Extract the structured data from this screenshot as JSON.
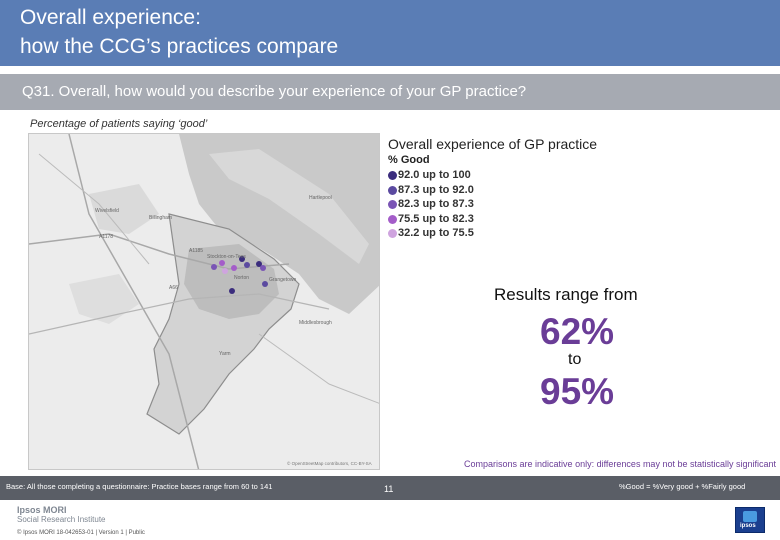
{
  "header": {
    "title_line1": "Overall experience:",
    "title_line2": "how the CCG’s practices compare"
  },
  "question": "Q31. Overall, how would you describe your experience of your GP practice?",
  "subtitle": "Percentage of patients saying ‘good’",
  "map": {
    "place_labels": [
      "Wivelsfield",
      "A1178",
      "A1185",
      "Grangetown",
      "A66",
      "Middlesbrough",
      "Stockton-on-Tees",
      "Norton",
      "Yarm",
      "Hartlepool",
      "Billingham"
    ],
    "attribution": "© OpenStreetMap contributors, CC-BY-SA"
  },
  "legend": {
    "title": "Overall experience of GP practice",
    "subtitle": "% Good",
    "items": [
      {
        "label": "92.0 up to 100",
        "color": "#3b2d7d"
      },
      {
        "label": "87.3 up to 92.0",
        "color": "#5b4aa0"
      },
      {
        "label": "82.3 up to 87.3",
        "color": "#7a55b5"
      },
      {
        "label": "75.5 up to 82.3",
        "color": "#a45dc9"
      },
      {
        "label": "32.2 up to 75.5",
        "color": "#cfa4df"
      }
    ]
  },
  "results": {
    "intro": "Results range from",
    "low": "62%",
    "connector": "to",
    "high": "95%"
  },
  "note": "Comparisons are indicative only: differences may not be statistically significant",
  "base": {
    "left": "Base: All those completing a questionnaire: Practice bases range from 60 to 141",
    "right": "%Good = %Very good + %Fairly good"
  },
  "footer": {
    "logo_line1": "Ipsos MORI",
    "logo_line2": "Social Research Institute",
    "copyright": "© Ipsos MORI     18-042653-01 | Version 1 | Public",
    "page_number": "11",
    "badge_text": "ipsos"
  }
}
